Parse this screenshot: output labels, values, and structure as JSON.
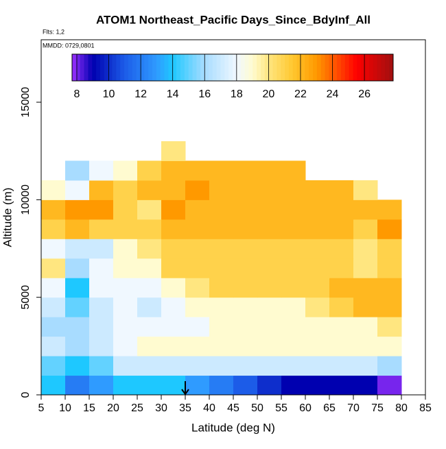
{
  "chart_data": {
    "type": "heatmap",
    "title": "ATOM1 Northeast_Pacific Days_Since_BdyInf_All",
    "annotations": [
      "Flts: 1,2",
      "MMDD: 0729,0801"
    ],
    "x_label": "Latitude (deg N)",
    "y_label": "Altitude (m)",
    "xlim": [
      5,
      85
    ],
    "xticks": [
      5,
      10,
      15,
      20,
      25,
      30,
      35,
      40,
      45,
      50,
      55,
      60,
      65,
      70,
      75,
      80,
      85
    ],
    "ylim": [
      0,
      18200
    ],
    "yticks": [
      0,
      5000,
      10000,
      15000
    ],
    "arrow_x": 35,
    "x_edges": [
      5,
      10,
      15,
      20,
      25,
      30,
      35,
      40,
      45,
      50,
      55,
      60,
      65,
      70,
      75,
      80
    ],
    "y_edges": [
      0,
      1000,
      2000,
      3000,
      4000,
      5000,
      6000,
      7000,
      8000,
      9000,
      10000,
      11000,
      12000,
      13000
    ],
    "z": [
      [
        14,
        12,
        13,
        14,
        14,
        14,
        13,
        12,
        11,
        10,
        9,
        9,
        9,
        9,
        8
      ],
      [
        15,
        14,
        15,
        17,
        17,
        17,
        17,
        17,
        17,
        17,
        17,
        17,
        17,
        17,
        16
      ],
      [
        17,
        16,
        17,
        18,
        19,
        19,
        19,
        19,
        19,
        19,
        19,
        19,
        19,
        19,
        19
      ],
      [
        16,
        16,
        17,
        18,
        18,
        18,
        18,
        19,
        19,
        19,
        19,
        19,
        19,
        19,
        20
      ],
      [
        17,
        15,
        17,
        18,
        17,
        18,
        19,
        19,
        19,
        19,
        19,
        20,
        21,
        22,
        22
      ],
      [
        18,
        14,
        18,
        18,
        18,
        19,
        20,
        21,
        21,
        21,
        21,
        21,
        22,
        22,
        22
      ],
      [
        20,
        16,
        18,
        19,
        19,
        21,
        21,
        21,
        21,
        21,
        21,
        21,
        21,
        20,
        21
      ],
      [
        18,
        17,
        17,
        19,
        20,
        21,
        21,
        21,
        21,
        21,
        21,
        21,
        21,
        20,
        21
      ],
      [
        21,
        22,
        21,
        21,
        21,
        22,
        22,
        22,
        22,
        22,
        22,
        22,
        22,
        21,
        23
      ],
      [
        22,
        23,
        23,
        21,
        20,
        23,
        22,
        22,
        22,
        22,
        22,
        22,
        22,
        22,
        22
      ],
      [
        19,
        18,
        22,
        21,
        22,
        22,
        23,
        22,
        22,
        22,
        22,
        22,
        22,
        20,
        null
      ],
      [
        null,
        16,
        18,
        19,
        21,
        22,
        22,
        22,
        22,
        22,
        22,
        null,
        null,
        null,
        null
      ],
      [
        null,
        null,
        null,
        null,
        null,
        20,
        null,
        null,
        null,
        null,
        null,
        null,
        null,
        null,
        null
      ]
    ],
    "colorbar_lim": [
      7.7,
      27.8
    ],
    "colorbar_ticks": [
      8,
      10,
      12,
      14,
      16,
      18,
      20,
      22,
      24,
      26
    ],
    "colorscale": [
      [
        7.7,
        "#9b30ff"
      ],
      [
        9,
        "#0000b0"
      ],
      [
        11,
        "#1c5ce8"
      ],
      [
        13,
        "#2f9bff"
      ],
      [
        14,
        "#1ec8ff"
      ],
      [
        16,
        "#a8dcff"
      ],
      [
        18,
        "#f0f8ff"
      ],
      [
        19,
        "#fffbd0"
      ],
      [
        20,
        "#ffe680"
      ],
      [
        21.5,
        "#ffc830"
      ],
      [
        23,
        "#ff9900"
      ],
      [
        24.5,
        "#ff4000"
      ],
      [
        25.5,
        "#ff0000"
      ],
      [
        27.8,
        "#a01010"
      ]
    ]
  }
}
